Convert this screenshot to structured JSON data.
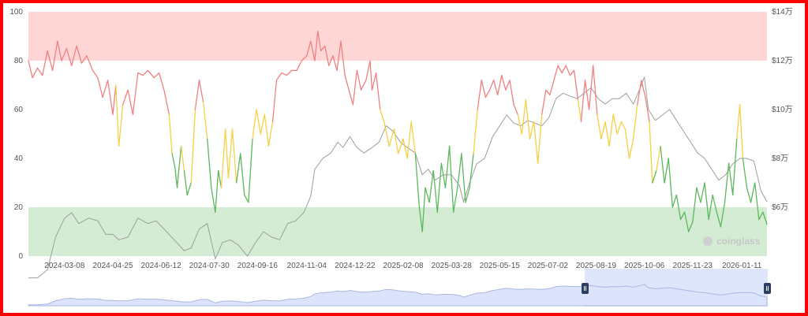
{
  "watermark": "coinglass",
  "chart_data": {
    "type": "line",
    "x_ticks": [
      "2024-03-08",
      "2024-04-25",
      "2024-06-12",
      "2024-07-30",
      "2024-09-16",
      "2024-11-04",
      "2024-12-22",
      "2025-02-08",
      "2025-03-28",
      "2025-05-15",
      "2025-07-02",
      "2025-08-19",
      "2025-10-06",
      "2025-11-23",
      "2026-01-11"
    ],
    "x_start": "2024-02-01",
    "x_end": "2026-02-05",
    "y_left": {
      "min": 0,
      "max": 100,
      "ticks": [
        "0",
        "20",
        "40",
        "60",
        "80",
        "100"
      ]
    },
    "y_right": {
      "ticks": [
        "$6万",
        "$8万",
        "$10万",
        "$12万",
        "$14万"
      ]
    },
    "zones": [
      {
        "from": 80,
        "to": 100,
        "color": "#ffd6d6"
      },
      {
        "from": 0,
        "to": 20,
        "color": "#d3ecd3"
      }
    ],
    "index_colors": {
      "high": "#f08080",
      "mid": "#f5d142",
      "low": "#5cb85c"
    },
    "price_color": "#9e9e9e",
    "index_series": [
      [
        "2024-02-01",
        80
      ],
      [
        "2024-02-05",
        73
      ],
      [
        "2024-02-10",
        77
      ],
      [
        "2024-02-15",
        74
      ],
      [
        "2024-02-20",
        84
      ],
      [
        "2024-02-25",
        76
      ],
      [
        "2024-03-01",
        88
      ],
      [
        "2024-03-05",
        80
      ],
      [
        "2024-03-10",
        85
      ],
      [
        "2024-03-15",
        78
      ],
      [
        "2024-03-20",
        86
      ],
      [
        "2024-03-25",
        79
      ],
      [
        "2024-03-30",
        82
      ],
      [
        "2024-04-05",
        76
      ],
      [
        "2024-04-10",
        73
      ],
      [
        "2024-04-15",
        65
      ],
      [
        "2024-04-20",
        72
      ],
      [
        "2024-04-25",
        58
      ],
      [
        "2024-04-28",
        70
      ],
      [
        "2024-05-01",
        45
      ],
      [
        "2024-05-05",
        62
      ],
      [
        "2024-05-10",
        68
      ],
      [
        "2024-05-15",
        58
      ],
      [
        "2024-05-20",
        75
      ],
      [
        "2024-05-25",
        74
      ],
      [
        "2024-05-30",
        76
      ],
      [
        "2024-06-05",
        73
      ],
      [
        "2024-06-10",
        75
      ],
      [
        "2024-06-15",
        68
      ],
      [
        "2024-06-20",
        58
      ],
      [
        "2024-06-23",
        42
      ],
      [
        "2024-06-26",
        36
      ],
      [
        "2024-06-28",
        28
      ],
      [
        "2024-07-02",
        45
      ],
      [
        "2024-07-05",
        35
      ],
      [
        "2024-07-08",
        25
      ],
      [
        "2024-07-12",
        30
      ],
      [
        "2024-07-16",
        60
      ],
      [
        "2024-07-20",
        72
      ],
      [
        "2024-07-24",
        63
      ],
      [
        "2024-07-28",
        48
      ],
      [
        "2024-08-01",
        28
      ],
      [
        "2024-08-05",
        18
      ],
      [
        "2024-08-08",
        35
      ],
      [
        "2024-08-11",
        28
      ],
      [
        "2024-08-15",
        52
      ],
      [
        "2024-08-18",
        32
      ],
      [
        "2024-08-22",
        52
      ],
      [
        "2024-08-26",
        30
      ],
      [
        "2024-08-30",
        42
      ],
      [
        "2024-09-03",
        25
      ],
      [
        "2024-09-07",
        22
      ],
      [
        "2024-09-11",
        48
      ],
      [
        "2024-09-15",
        60
      ],
      [
        "2024-09-19",
        50
      ],
      [
        "2024-09-23",
        58
      ],
      [
        "2024-09-27",
        45
      ],
      [
        "2024-10-01",
        55
      ],
      [
        "2024-10-05",
        72
      ],
      [
        "2024-10-10",
        75
      ],
      [
        "2024-10-15",
        74
      ],
      [
        "2024-10-20",
        76
      ],
      [
        "2024-10-25",
        76
      ],
      [
        "2024-10-30",
        80
      ],
      [
        "2024-11-04",
        82
      ],
      [
        "2024-11-08",
        88
      ],
      [
        "2024-11-12",
        80
      ],
      [
        "2024-11-15",
        92
      ],
      [
        "2024-11-18",
        84
      ],
      [
        "2024-11-22",
        86
      ],
      [
        "2024-11-26",
        78
      ],
      [
        "2024-11-30",
        82
      ],
      [
        "2024-12-04",
        76
      ],
      [
        "2024-12-08",
        88
      ],
      [
        "2024-12-12",
        74
      ],
      [
        "2024-12-16",
        68
      ],
      [
        "2024-12-20",
        62
      ],
      [
        "2024-12-24",
        76
      ],
      [
        "2024-12-28",
        68
      ],
      [
        "2025-01-02",
        72
      ],
      [
        "2025-01-06",
        80
      ],
      [
        "2025-01-08",
        68
      ],
      [
        "2025-01-12",
        75
      ],
      [
        "2025-01-16",
        60
      ],
      [
        "2025-01-20",
        55
      ],
      [
        "2025-01-25",
        45
      ],
      [
        "2025-01-30",
        52
      ],
      [
        "2025-02-03",
        42
      ],
      [
        "2025-02-08",
        48
      ],
      [
        "2025-02-12",
        40
      ],
      [
        "2025-02-16",
        55
      ],
      [
        "2025-02-20",
        42
      ],
      [
        "2025-02-24",
        20
      ],
      [
        "2025-02-27",
        10
      ],
      [
        "2025-03-02",
        28
      ],
      [
        "2025-03-06",
        22
      ],
      [
        "2025-03-10",
        35
      ],
      [
        "2025-03-14",
        18
      ],
      [
        "2025-03-18",
        38
      ],
      [
        "2025-03-22",
        28
      ],
      [
        "2025-03-26",
        45
      ],
      [
        "2025-03-30",
        18
      ],
      [
        "2025-04-03",
        28
      ],
      [
        "2025-04-07",
        42
      ],
      [
        "2025-04-11",
        22
      ],
      [
        "2025-04-15",
        28
      ],
      [
        "2025-04-19",
        42
      ],
      [
        "2025-04-23",
        60
      ],
      [
        "2025-04-27",
        72
      ],
      [
        "2025-05-01",
        65
      ],
      [
        "2025-05-05",
        68
      ],
      [
        "2025-05-09",
        72
      ],
      [
        "2025-05-13",
        66
      ],
      [
        "2025-05-17",
        74
      ],
      [
        "2025-05-21",
        68
      ],
      [
        "2025-05-25",
        72
      ],
      [
        "2025-05-29",
        62
      ],
      [
        "2025-06-02",
        58
      ],
      [
        "2025-06-06",
        50
      ],
      [
        "2025-06-10",
        64
      ],
      [
        "2025-06-14",
        48
      ],
      [
        "2025-06-18",
        55
      ],
      [
        "2025-06-22",
        38
      ],
      [
        "2025-06-26",
        58
      ],
      [
        "2025-06-30",
        68
      ],
      [
        "2025-07-04",
        66
      ],
      [
        "2025-07-08",
        72
      ],
      [
        "2025-07-12",
        78
      ],
      [
        "2025-07-16",
        75
      ],
      [
        "2025-07-20",
        78
      ],
      [
        "2025-07-24",
        74
      ],
      [
        "2025-07-28",
        76
      ],
      [
        "2025-08-01",
        64
      ],
      [
        "2025-08-04",
        55
      ],
      [
        "2025-08-08",
        72
      ],
      [
        "2025-08-12",
        60
      ],
      [
        "2025-08-16",
        78
      ],
      [
        "2025-08-20",
        58
      ],
      [
        "2025-08-24",
        48
      ],
      [
        "2025-08-28",
        55
      ],
      [
        "2025-09-01",
        45
      ],
      [
        "2025-09-05",
        58
      ],
      [
        "2025-09-09",
        50
      ],
      [
        "2025-09-13",
        55
      ],
      [
        "2025-09-17",
        52
      ],
      [
        "2025-09-21",
        40
      ],
      [
        "2025-09-25",
        48
      ],
      [
        "2025-09-29",
        62
      ],
      [
        "2025-10-03",
        72
      ],
      [
        "2025-10-07",
        65
      ],
      [
        "2025-10-11",
        55
      ],
      [
        "2025-10-14",
        30
      ],
      [
        "2025-10-18",
        35
      ],
      [
        "2025-10-22",
        45
      ],
      [
        "2025-10-26",
        30
      ],
      [
        "2025-10-30",
        40
      ],
      [
        "2025-11-03",
        20
      ],
      [
        "2025-11-07",
        25
      ],
      [
        "2025-11-11",
        15
      ],
      [
        "2025-11-15",
        18
      ],
      [
        "2025-11-19",
        10
      ],
      [
        "2025-11-23",
        14
      ],
      [
        "2025-11-27",
        28
      ],
      [
        "2025-12-01",
        22
      ],
      [
        "2025-12-05",
        30
      ],
      [
        "2025-12-09",
        15
      ],
      [
        "2025-12-13",
        25
      ],
      [
        "2025-12-17",
        18
      ],
      [
        "2025-12-21",
        12
      ],
      [
        "2025-12-25",
        22
      ],
      [
        "2025-12-29",
        38
      ],
      [
        "2026-01-02",
        25
      ],
      [
        "2026-01-06",
        48
      ],
      [
        "2026-01-09",
        62
      ],
      [
        "2026-01-12",
        40
      ],
      [
        "2026-01-16",
        28
      ],
      [
        "2026-01-20",
        22
      ],
      [
        "2026-01-24",
        30
      ],
      [
        "2026-01-28",
        15
      ],
      [
        "2026-02-01",
        18
      ],
      [
        "2026-02-05",
        13
      ]
    ],
    "price_series": [
      [
        "2024-02-01",
        42
      ],
      [
        "2024-02-10",
        42
      ],
      [
        "2024-02-20",
        45
      ],
      [
        "2024-02-28",
        57
      ],
      [
        "2024-03-08",
        64
      ],
      [
        "2024-03-15",
        66
      ],
      [
        "2024-03-22",
        62
      ],
      [
        "2024-04-01",
        64
      ],
      [
        "2024-04-10",
        63
      ],
      [
        "2024-04-18",
        58
      ],
      [
        "2024-04-25",
        58
      ],
      [
        "2024-05-01",
        56
      ],
      [
        "2024-05-10",
        57
      ],
      [
        "2024-05-20",
        64
      ],
      [
        "2024-05-30",
        62
      ],
      [
        "2024-06-07",
        63
      ],
      [
        "2024-06-15",
        60
      ],
      [
        "2024-06-25",
        56
      ],
      [
        "2024-07-05",
        52
      ],
      [
        "2024-07-12",
        53
      ],
      [
        "2024-07-20",
        60
      ],
      [
        "2024-07-28",
        62
      ],
      [
        "2024-08-05",
        49
      ],
      [
        "2024-08-12",
        55
      ],
      [
        "2024-08-20",
        56
      ],
      [
        "2024-08-28",
        54
      ],
      [
        "2024-09-06",
        50
      ],
      [
        "2024-09-14",
        55
      ],
      [
        "2024-09-22",
        59
      ],
      [
        "2024-09-30",
        57
      ],
      [
        "2024-10-08",
        56
      ],
      [
        "2024-10-16",
        62
      ],
      [
        "2024-10-24",
        63
      ],
      [
        "2024-11-01",
        66
      ],
      [
        "2024-11-08",
        72
      ],
      [
        "2024-11-12",
        82
      ],
      [
        "2024-11-20",
        86
      ],
      [
        "2024-11-28",
        88
      ],
      [
        "2024-12-05",
        92
      ],
      [
        "2024-12-10",
        90
      ],
      [
        "2024-12-17",
        94
      ],
      [
        "2024-12-24",
        90
      ],
      [
        "2024-12-31",
        88
      ],
      [
        "2025-01-08",
        90
      ],
      [
        "2025-01-15",
        92
      ],
      [
        "2025-01-22",
        98
      ],
      [
        "2025-01-29",
        96
      ],
      [
        "2025-02-05",
        92
      ],
      [
        "2025-02-12",
        90
      ],
      [
        "2025-02-20",
        88
      ],
      [
        "2025-02-27",
        80
      ],
      [
        "2025-03-05",
        82
      ],
      [
        "2025-03-12",
        78
      ],
      [
        "2025-03-20",
        80
      ],
      [
        "2025-03-28",
        80
      ],
      [
        "2025-04-05",
        76
      ],
      [
        "2025-04-09",
        70
      ],
      [
        "2025-04-15",
        77
      ],
      [
        "2025-04-22",
        84
      ],
      [
        "2025-04-30",
        86
      ],
      [
        "2025-05-08",
        94
      ],
      [
        "2025-05-15",
        98
      ],
      [
        "2025-05-22",
        102
      ],
      [
        "2025-05-29",
        99
      ],
      [
        "2025-06-05",
        98
      ],
      [
        "2025-06-12",
        100
      ],
      [
        "2025-06-19",
        99
      ],
      [
        "2025-06-26",
        98
      ],
      [
        "2025-07-03",
        101
      ],
      [
        "2025-07-10",
        108
      ],
      [
        "2025-07-17",
        110
      ],
      [
        "2025-07-24",
        109
      ],
      [
        "2025-07-31",
        108
      ],
      [
        "2025-08-07",
        110
      ],
      [
        "2025-08-14",
        112
      ],
      [
        "2025-08-21",
        108
      ],
      [
        "2025-08-28",
        106
      ],
      [
        "2025-09-04",
        108
      ],
      [
        "2025-09-11",
        108
      ],
      [
        "2025-09-18",
        110
      ],
      [
        "2025-09-25",
        106
      ],
      [
        "2025-10-02",
        112
      ],
      [
        "2025-10-06",
        116
      ],
      [
        "2025-10-10",
        104
      ],
      [
        "2025-10-17",
        100
      ],
      [
        "2025-10-24",
        102
      ],
      [
        "2025-10-31",
        104
      ],
      [
        "2025-11-07",
        100
      ],
      [
        "2025-11-14",
        96
      ],
      [
        "2025-11-21",
        92
      ],
      [
        "2025-11-28",
        88
      ],
      [
        "2025-12-05",
        86
      ],
      [
        "2025-12-12",
        82
      ],
      [
        "2025-12-19",
        78
      ],
      [
        "2025-12-26",
        80
      ],
      [
        "2026-01-02",
        84
      ],
      [
        "2026-01-09",
        86
      ],
      [
        "2026-01-16",
        86
      ],
      [
        "2026-01-23",
        85
      ],
      [
        "2026-01-30",
        74
      ],
      [
        "2026-02-05",
        70
      ]
    ],
    "price_range": [
      50,
      140
    ]
  }
}
